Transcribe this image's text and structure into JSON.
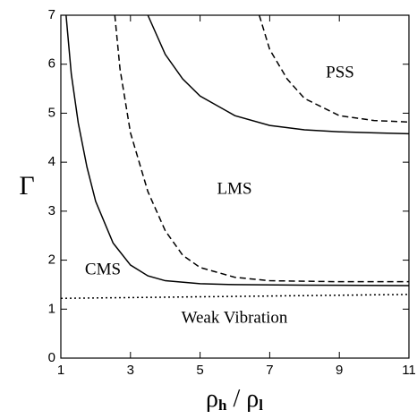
{
  "chart_data": {
    "type": "line",
    "y_label": "Γ",
    "x_label_parts": [
      "ρ",
      "h",
      " / ",
      "ρ",
      "l"
    ],
    "annotations": [
      "PSS",
      "LMS",
      "CMS",
      "Weak Vibration"
    ],
    "xlim": [
      1,
      11
    ],
    "xticks": [
      1,
      3,
      5,
      7,
      9,
      11
    ],
    "ylim": [
      0,
      7
    ],
    "yticks": [
      0,
      1,
      2,
      3,
      4,
      5,
      6,
      7
    ],
    "series": [
      {
        "color": "#000000",
        "style": "solid",
        "x": [
          1.15,
          1.3,
          1.5,
          1.75,
          2,
          2.5,
          3,
          3.5,
          4,
          5,
          6,
          8,
          11
        ],
        "values": [
          7,
          5.8,
          4.8,
          3.9,
          3.2,
          2.35,
          1.9,
          1.68,
          1.58,
          1.52,
          1.5,
          1.49,
          1.48
        ]
      },
      {
        "color": "#000000",
        "style": "dashed",
        "x": [
          2.55,
          2.7,
          3,
          3.5,
          4,
          4.5,
          5,
          6,
          7,
          9,
          11
        ],
        "values": [
          7,
          5.9,
          4.6,
          3.4,
          2.6,
          2.1,
          1.85,
          1.65,
          1.58,
          1.56,
          1.56
        ]
      },
      {
        "color": "#000000",
        "style": "solid",
        "x": [
          3.5,
          4,
          4.5,
          5,
          6,
          7,
          8,
          9,
          10,
          11
        ],
        "values": [
          7,
          6.2,
          5.7,
          5.35,
          4.95,
          4.75,
          4.66,
          4.62,
          4.6,
          4.58
        ]
      },
      {
        "color": "#000000",
        "style": "dashed",
        "x": [
          6.7,
          7,
          7.5,
          8,
          9,
          10,
          11
        ],
        "values": [
          7,
          6.3,
          5.7,
          5.3,
          4.95,
          4.85,
          4.82
        ]
      },
      {
        "color": "#000000",
        "style": "dotted",
        "x": [
          1,
          11
        ],
        "values": [
          1.22,
          1.3
        ]
      }
    ]
  }
}
